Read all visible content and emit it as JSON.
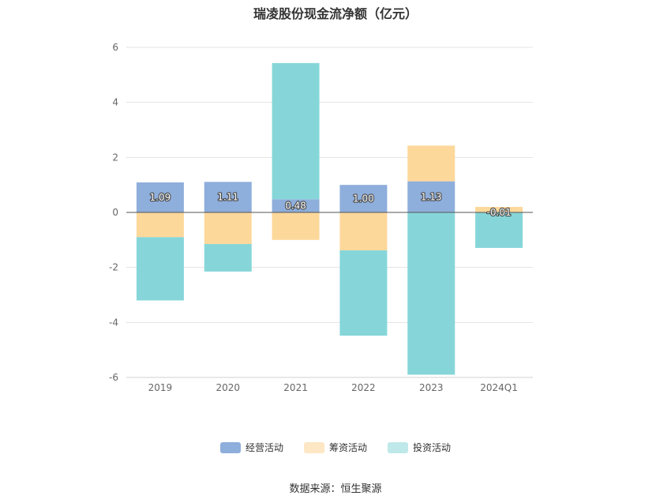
{
  "chart_data": {
    "type": "bar",
    "stacked": true,
    "title": "瑞凌股份现金流净额（亿元）",
    "xlabel": "",
    "ylabel": "",
    "ylim": [
      -6,
      6
    ],
    "yticks": [
      6,
      4,
      2,
      0,
      -2,
      -4,
      -6
    ],
    "grid": true,
    "legend_position": "bottom",
    "categories": [
      "2019",
      "2020",
      "2021",
      "2022",
      "2023",
      "2024Q1"
    ],
    "series": [
      {
        "name": "经营活动",
        "color": "#8eaedb",
        "values": [
          1.09,
          1.11,
          0.48,
          1.0,
          1.13,
          -0.01
        ],
        "labels": [
          "1.09",
          "1.11",
          "0.48",
          "1.00",
          "1.13",
          "-0.01"
        ]
      },
      {
        "name": "筹资活动",
        "color": "#fdd89b",
        "values": [
          -0.9,
          -1.15,
          -1.0,
          -1.38,
          1.3,
          0.2
        ]
      },
      {
        "name": "投资活动",
        "color": "#86d6d9",
        "values": [
          -2.3,
          -1.0,
          4.95,
          -3.1,
          -5.9,
          -1.28
        ]
      }
    ]
  },
  "source": "数据来源：恒生聚源"
}
